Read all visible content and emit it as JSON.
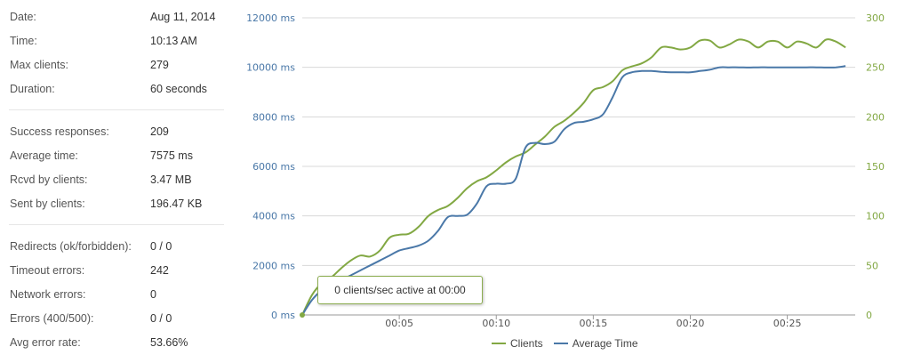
{
  "stats": {
    "groups": [
      [
        {
          "label": "Date:",
          "value": "Aug 11, 2014"
        },
        {
          "label": "Time:",
          "value": "10:13 AM"
        },
        {
          "label": "Max clients:",
          "value": "279"
        },
        {
          "label": "Duration:",
          "value": "60 seconds"
        }
      ],
      [
        {
          "label": "Success responses:",
          "value": "209"
        },
        {
          "label": "Average time:",
          "value": "7575 ms"
        },
        {
          "label": "Rcvd by clients:",
          "value": "3.47 MB"
        },
        {
          "label": "Sent by clients:",
          "value": "196.47 KB"
        }
      ],
      [
        {
          "label": "Redirects (ok/forbidden):",
          "value": "0 / 0"
        },
        {
          "label": "Timeout errors:",
          "value": "242"
        },
        {
          "label": "Network errors:",
          "value": "0"
        },
        {
          "label": "Errors (400/500):",
          "value": "0 / 0"
        },
        {
          "label": "Avg error rate:",
          "value": "53.66%"
        }
      ]
    ]
  },
  "tooltip": "0 clients/sec active at 00:00",
  "chart_data": {
    "type": "line",
    "x_ticks": [
      5,
      10,
      15,
      20,
      25
    ],
    "x_tick_labels": [
      "00:05",
      "00:10",
      "00:15",
      "00:20",
      "00:25"
    ],
    "xlim": [
      0,
      28.5
    ],
    "y_left_ticks": [
      "0 ms",
      "2000 ms",
      "4000 ms",
      "6000 ms",
      "8000 ms",
      "10000 ms",
      "12000 ms"
    ],
    "y_left_lim": [
      0,
      12000
    ],
    "y_right_ticks": [
      "0",
      "50",
      "100",
      "150",
      "200",
      "250",
      "300"
    ],
    "y_right_lim": [
      0,
      300
    ],
    "grid": true,
    "legend_position": "bottom",
    "series": [
      {
        "name": "Clients",
        "axis": "right",
        "color": "#82a843",
        "x": [
          0,
          0.5,
          1,
          1.5,
          2,
          2.5,
          3,
          3.5,
          4,
          4.5,
          5,
          5.5,
          6,
          6.5,
          7,
          7.5,
          8,
          8.5,
          9,
          9.5,
          10,
          10.5,
          11,
          11.5,
          12,
          12.5,
          13,
          13.5,
          14,
          14.5,
          15,
          15.5,
          16,
          16.5,
          17,
          17.5,
          18,
          18.5,
          19,
          19.5,
          20,
          20.5,
          21,
          21.5,
          22,
          22.5,
          23,
          23.5,
          24,
          24.5,
          25,
          25.5,
          26,
          26.5,
          27,
          27.5,
          28
        ],
        "values": [
          0,
          20,
          32,
          38,
          47,
          55,
          60,
          59,
          65,
          78,
          81,
          82,
          89,
          100,
          106,
          110,
          118,
          128,
          135,
          139,
          146,
          154,
          160,
          164,
          172,
          180,
          190,
          196,
          204,
          214,
          227,
          230,
          236,
          247,
          251,
          254,
          260,
          270,
          270,
          268,
          270,
          277,
          277,
          270,
          273,
          278,
          276,
          270,
          276,
          276,
          270,
          276,
          274,
          270,
          278,
          276,
          270
        ]
      },
      {
        "name": "Average Time",
        "axis": "left",
        "color": "#4a78a8",
        "x": [
          0,
          0.5,
          1,
          1.5,
          2,
          2.5,
          3,
          3.5,
          4,
          4.5,
          5,
          5.5,
          6,
          6.5,
          7,
          7.5,
          8,
          8.5,
          9,
          9.5,
          10,
          10.5,
          11,
          11.5,
          12,
          12.5,
          13,
          13.5,
          14,
          14.5,
          15,
          15.5,
          16,
          16.5,
          17,
          17.5,
          18,
          18.5,
          19,
          19.5,
          20,
          20.5,
          21,
          21.5,
          22,
          22.5,
          23,
          23.5,
          24,
          24.5,
          25,
          25.5,
          26,
          26.5,
          27,
          27.5,
          28
        ],
        "values": [
          0,
          600,
          1000,
          1250,
          1400,
          1600,
          1800,
          2000,
          2200,
          2400,
          2600,
          2700,
          2800,
          3000,
          3400,
          3950,
          4000,
          4050,
          4500,
          5200,
          5300,
          5300,
          5500,
          6750,
          6950,
          6900,
          7000,
          7500,
          7750,
          7800,
          7900,
          8100,
          8800,
          9600,
          9800,
          9850,
          9850,
          9820,
          9800,
          9800,
          9800,
          9850,
          9900,
          10000,
          10000,
          10000,
          9990,
          10000,
          10000,
          10000,
          10000,
          10000,
          10000,
          10000,
          9990,
          10000,
          10050
        ]
      }
    ]
  }
}
